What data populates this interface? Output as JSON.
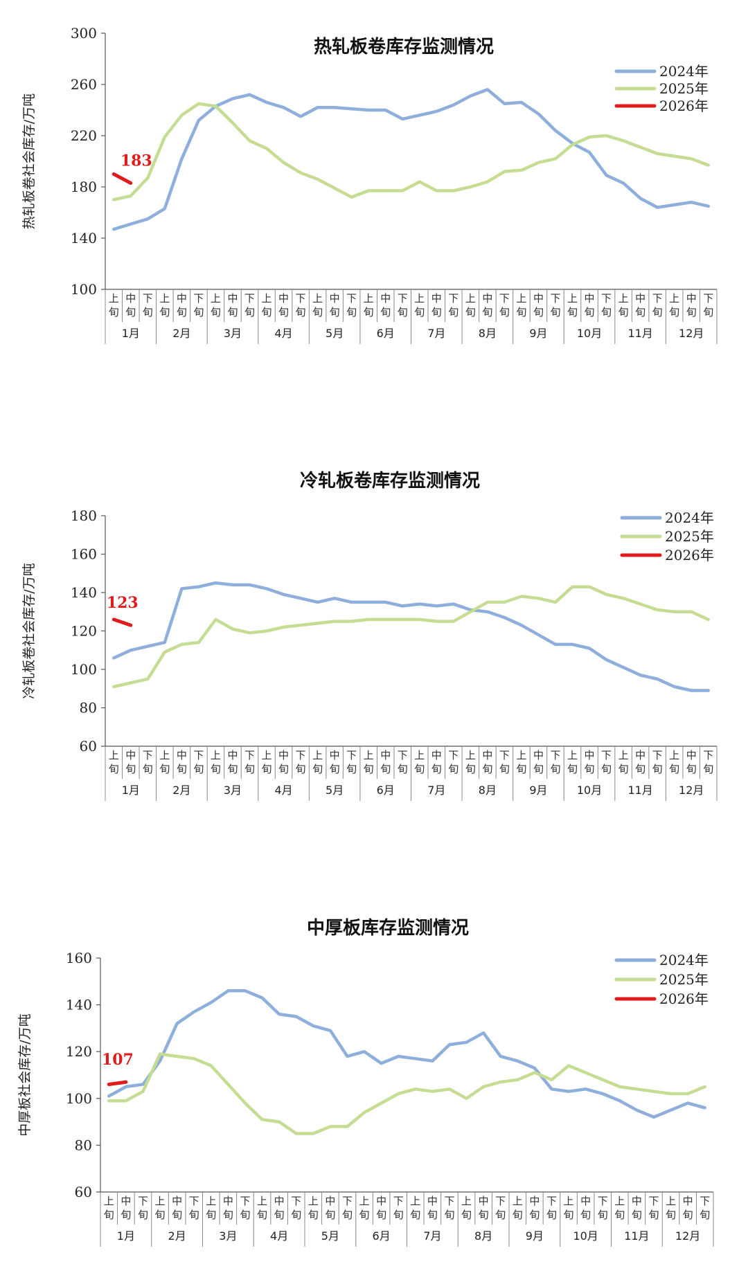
{
  "chart_data": [
    {
      "type": "line",
      "title": "热轧板卷库存监测情况",
      "ylabel": "热轧板卷社会库存/万吨",
      "ylim": [
        100,
        300
      ],
      "yticks": [
        100,
        140,
        180,
        220,
        260,
        300
      ],
      "dekads": [
        "上旬",
        "中旬",
        "下旬"
      ],
      "months": [
        "1月",
        "2月",
        "3月",
        "4月",
        "5月",
        "6月",
        "7月",
        "8月",
        "9月",
        "10月",
        "11月",
        "12月"
      ],
      "legend_position": "top-right",
      "series": [
        {
          "name": "2024年",
          "color": "#8eaedb",
          "values": [
            147,
            151,
            155,
            163,
            202,
            232,
            243,
            249,
            252,
            246,
            242,
            235,
            242,
            242,
            241,
            240,
            240,
            233,
            236,
            239,
            244,
            251,
            256,
            245,
            246,
            237,
            224,
            214,
            207,
            189,
            183,
            171,
            164,
            166,
            168,
            165
          ]
        },
        {
          "name": "2025年",
          "color": "#c5dd93",
          "values": [
            170,
            173,
            187,
            219,
            236,
            245,
            243,
            230,
            216,
            210,
            199,
            191,
            186,
            179,
            172,
            177,
            177,
            177,
            184,
            177,
            177,
            180,
            184,
            192,
            193,
            199,
            202,
            213,
            219,
            220,
            216,
            211,
            206,
            204,
            202,
            197
          ]
        },
        {
          "name": "2026年",
          "color": "#e01b1b",
          "values": [
            190,
            183
          ],
          "data_label": "183"
        }
      ]
    },
    {
      "type": "line",
      "title": "冷轧板卷库存监测情况",
      "ylabel": "冷轧板卷社会库存/万吨",
      "ylim": [
        60,
        180
      ],
      "yticks": [
        60,
        80,
        100,
        120,
        140,
        160,
        180
      ],
      "dekads": [
        "上旬",
        "中旬",
        "下旬"
      ],
      "months": [
        "1月",
        "2月",
        "3月",
        "4月",
        "5月",
        "6月",
        "7月",
        "8月",
        "9月",
        "10月",
        "11月",
        "12月"
      ],
      "legend_position": "top-right",
      "series": [
        {
          "name": "2024年",
          "color": "#8eaedb",
          "values": [
            106,
            110,
            112,
            114,
            142,
            143,
            145,
            144,
            144,
            142,
            139,
            137,
            135,
            137,
            135,
            135,
            135,
            133,
            134,
            133,
            134,
            131,
            130,
            127,
            123,
            118,
            113,
            113,
            111,
            105,
            101,
            97,
            95,
            91,
            89,
            89
          ]
        },
        {
          "name": "2025年",
          "color": "#c5dd93",
          "values": [
            91,
            93,
            95,
            109,
            113,
            114,
            126,
            121,
            119,
            120,
            122,
            123,
            124,
            125,
            125,
            126,
            126,
            126,
            126,
            125,
            125,
            130,
            135,
            135,
            138,
            137,
            135,
            143,
            143,
            139,
            137,
            134,
            131,
            130,
            130,
            126
          ]
        },
        {
          "name": "2026年",
          "color": "#e01b1b",
          "values": [
            126,
            123
          ],
          "data_label": "123"
        }
      ]
    },
    {
      "type": "line",
      "title": "中厚板库存监测情况",
      "ylabel": "中厚板社会库存/万吨",
      "ylim": [
        60,
        160
      ],
      "yticks": [
        60,
        80,
        100,
        120,
        140,
        160
      ],
      "dekads": [
        "上旬",
        "中旬",
        "下旬"
      ],
      "months": [
        "1月",
        "2月",
        "3月",
        "4月",
        "5月",
        "6月",
        "7月",
        "8月",
        "9月",
        "10月",
        "11月",
        "12月"
      ],
      "legend_position": "top-right",
      "series": [
        {
          "name": "2024年",
          "color": "#8eaedb",
          "values": [
            101,
            105,
            106,
            116,
            132,
            137,
            141,
            146,
            146,
            143,
            136,
            135,
            131,
            129,
            118,
            120,
            115,
            118,
            117,
            116,
            123,
            124,
            128,
            118,
            116,
            113,
            104,
            103,
            104,
            102,
            99,
            95,
            92,
            95,
            98,
            96
          ]
        },
        {
          "name": "2025年",
          "color": "#c5dd93",
          "values": [
            99,
            99,
            103,
            119,
            118,
            117,
            114,
            106,
            98,
            91,
            90,
            85,
            85,
            88,
            88,
            94,
            98,
            102,
            104,
            103,
            104,
            100,
            105,
            107,
            108,
            111,
            108,
            114,
            111,
            108,
            105,
            104,
            103,
            102,
            102,
            105
          ]
        },
        {
          "name": "2026年",
          "color": "#e01b1b",
          "values": [
            106,
            107
          ],
          "data_label": "107"
        }
      ]
    }
  ]
}
